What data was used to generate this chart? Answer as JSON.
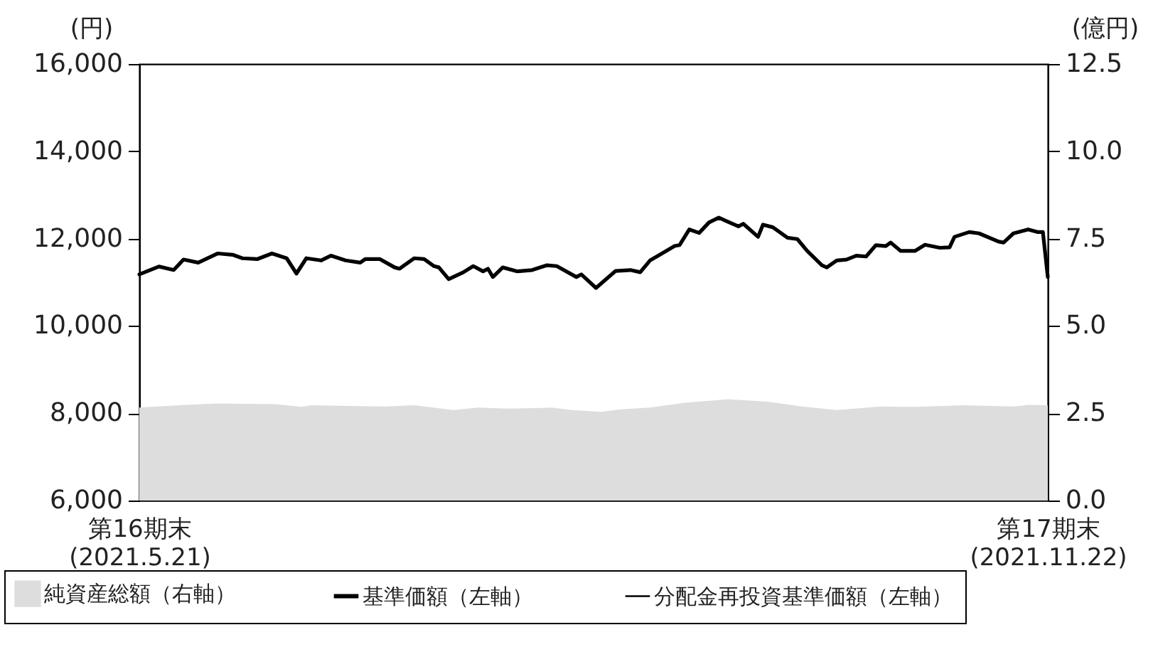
{
  "chart_data": {
    "type": "line",
    "legend": "bottom",
    "grid": false,
    "xlim": [
      "2021-05-21",
      "2021-11-22"
    ],
    "xticks": [
      {
        "value": "2021-05-21",
        "label": "第16期末\n(2021.5.21)"
      },
      {
        "value": "2021-11-22",
        "label": "第17期末\n(2021.11.22)"
      }
    ],
    "ylabel": "(円)",
    "y2label": "(億円)",
    "ylim": [
      6000,
      16000
    ],
    "yticks": [
      {
        "value": 6000,
        "label": "6,000"
      },
      {
        "value": 8000,
        "label": "8,000"
      },
      {
        "value": 10000,
        "label": "10,000"
      },
      {
        "value": 12000,
        "label": "12,000"
      },
      {
        "value": 14000,
        "label": "14,000"
      },
      {
        "value": 16000,
        "label": "16,000"
      }
    ],
    "y2lim": [
      0,
      12.5
    ],
    "y2ticks": [
      {
        "value": 0,
        "label": "0.0"
      },
      {
        "value": 2.5,
        "label": "2.5"
      },
      {
        "value": 5,
        "label": "5.0"
      },
      {
        "value": 7.5,
        "label": "7.5"
      },
      {
        "value": 10,
        "label": "10.0"
      },
      {
        "value": 12.5,
        "label": "12.5"
      }
    ],
    "series": [
      {
        "name": "純資産総額（右軸）",
        "type": "area",
        "axis": "y2",
        "color": "#dcdddc",
        "x": [
          "2021-05-21",
          "2021-05-29",
          "2021-06-06",
          "2021-06-18",
          "2021-06-23",
          "2021-06-25",
          "2021-07-10",
          "2021-07-16",
          "2021-07-24",
          "2021-07-29",
          "2021-08-04",
          "2021-08-13",
          "2021-08-17",
          "2021-08-23",
          "2021-08-27",
          "2021-09-02",
          "2021-09-09",
          "2021-09-18",
          "2021-09-26",
          "2021-10-03",
          "2021-10-10",
          "2021-10-19",
          "2021-10-26",
          "2021-11-05",
          "2021-11-15",
          "2021-11-18",
          "2021-11-22"
        ],
        "values": [
          2.66,
          2.73,
          2.78,
          2.76,
          2.68,
          2.73,
          2.69,
          2.73,
          2.59,
          2.66,
          2.63,
          2.66,
          2.59,
          2.54,
          2.61,
          2.66,
          2.8,
          2.9,
          2.83,
          2.69,
          2.59,
          2.69,
          2.68,
          2.73,
          2.69,
          2.74,
          2.73
        ]
      },
      {
        "name": "基準価額（左軸）",
        "type": "line",
        "color": "#000000",
        "x": [
          "2021-05-21",
          "2021-05-25",
          "2021-05-28",
          "2021-05-30",
          "2021-06-02",
          "2021-06-06",
          "2021-06-09",
          "2021-06-11",
          "2021-06-14",
          "2021-06-17",
          "2021-06-20",
          "2021-06-22",
          "2021-06-24",
          "2021-06-27",
          "2021-06-29",
          "2021-07-02",
          "2021-07-05",
          "2021-07-06",
          "2021-07-09",
          "2021-07-12",
          "2021-07-13",
          "2021-07-16",
          "2021-07-18",
          "2021-07-20",
          "2021-07-21",
          "2021-07-23",
          "2021-07-26",
          "2021-07-28",
          "2021-07-30",
          "2021-07-31",
          "2021-08-01",
          "2021-08-03",
          "2021-08-06",
          "2021-08-09",
          "2021-08-12",
          "2021-08-14",
          "2021-08-18",
          "2021-08-19",
          "2021-08-22",
          "2021-08-26",
          "2021-08-29",
          "2021-08-31",
          "2021-09-02",
          "2021-09-04",
          "2021-09-07",
          "2021-09-08",
          "2021-09-10",
          "2021-09-12",
          "2021-09-14",
          "2021-09-16",
          "2021-09-20",
          "2021-09-21",
          "2021-09-24",
          "2021-09-25",
          "2021-09-27",
          "2021-09-30",
          "2021-10-02",
          "2021-10-04",
          "2021-10-07",
          "2021-10-08",
          "2021-10-10",
          "2021-10-12",
          "2021-10-14",
          "2021-10-16",
          "2021-10-18",
          "2021-10-20",
          "2021-10-21",
          "2021-10-23",
          "2021-10-26",
          "2021-10-28",
          "2021-10-31",
          "2021-11-02",
          "2021-11-03",
          "2021-11-06",
          "2021-11-08",
          "2021-11-12",
          "2021-11-13",
          "2021-11-15",
          "2021-11-18",
          "2021-11-20",
          "2021-11-21",
          "2021-11-22"
        ],
        "values": [
          11180,
          11360,
          11280,
          11520,
          11450,
          11660,
          11630,
          11550,
          11530,
          11660,
          11550,
          11200,
          11550,
          11500,
          11610,
          11500,
          11450,
          11530,
          11530,
          11340,
          11310,
          11550,
          11530,
          11370,
          11340,
          11070,
          11230,
          11370,
          11250,
          11310,
          11120,
          11340,
          11250,
          11280,
          11390,
          11370,
          11120,
          11180,
          10870,
          11260,
          11280,
          11230,
          11500,
          11630,
          11830,
          11850,
          12210,
          12130,
          12370,
          12480,
          12280,
          12340,
          12040,
          12320,
          12260,
          12020,
          11990,
          11720,
          11390,
          11340,
          11500,
          11520,
          11610,
          11590,
          11850,
          11830,
          11910,
          11720,
          11720,
          11860,
          11790,
          11800,
          12040,
          12150,
          12120,
          11930,
          11910,
          12120,
          12210,
          12150,
          12150,
          11120
        ]
      },
      {
        "name": "分配金再投資基準価額（左軸）",
        "type": "line",
        "color": "#000000"
      }
    ]
  }
}
